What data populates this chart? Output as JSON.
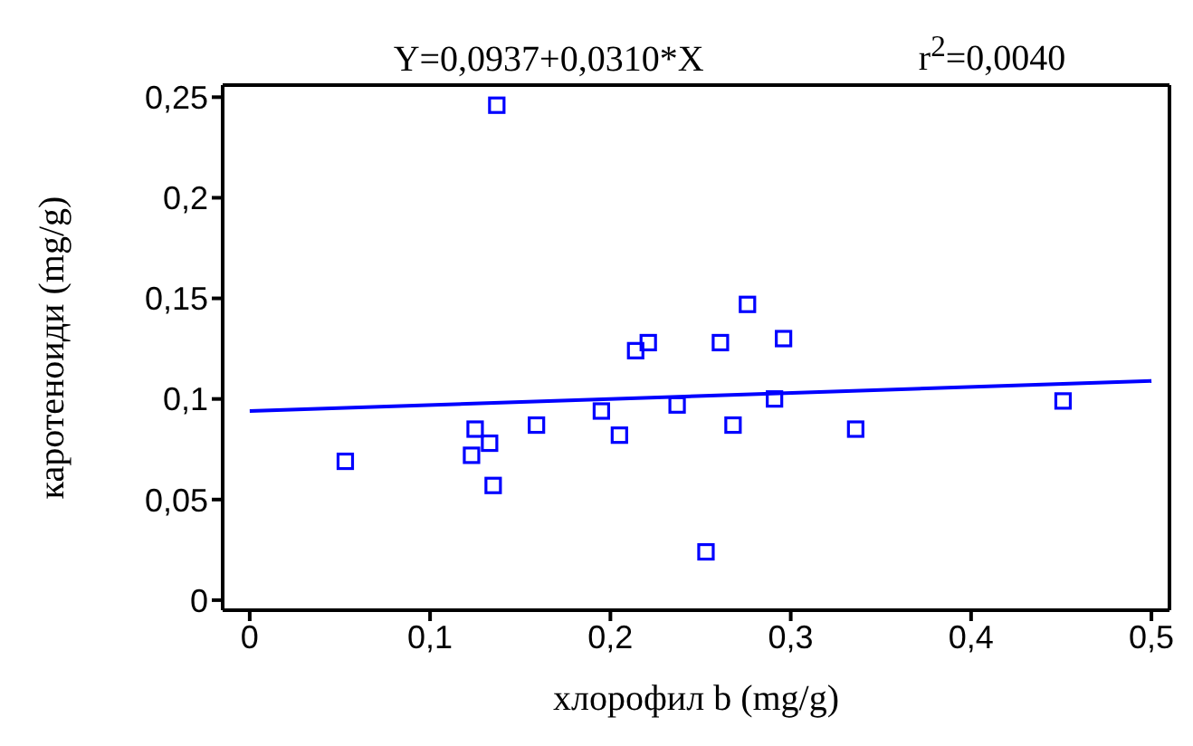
{
  "chart_data": {
    "type": "scatter",
    "xlabel": "хлорофил b (mg/g)",
    "ylabel": "каротеноиди (mg/g)",
    "annotations": [
      "Y=0,0937+0,0310*X",
      "r$^{2}$=0,0040"
    ],
    "xlim": [
      -0.015,
      0.51
    ],
    "xticks": [
      {
        "value": 0,
        "label": "0"
      },
      {
        "value": 0.1,
        "label": "0,1"
      },
      {
        "value": 0.2,
        "label": "0,2"
      },
      {
        "value": 0.3,
        "label": "0,3"
      },
      {
        "value": 0.4,
        "label": "0,4"
      },
      {
        "value": 0.5,
        "label": "0,5"
      }
    ],
    "ylim": [
      -0.005,
      0.256
    ],
    "yticks": [
      {
        "value": 0,
        "label": "0"
      },
      {
        "value": 0.05,
        "label": "0,05"
      },
      {
        "value": 0.1,
        "label": "0,1"
      },
      {
        "value": 0.15,
        "label": "0,15"
      },
      {
        "value": 0.2,
        "label": "0,2"
      },
      {
        "value": 0.25,
        "label": "0,25"
      }
    ],
    "series": [
      {
        "marker": "square",
        "color": "#0000ff",
        "x": [
          0.053,
          0.137,
          0.125,
          0.123,
          0.133,
          0.135,
          0.159,
          0.195,
          0.205,
          0.214,
          0.221,
          0.237,
          0.253,
          0.261,
          0.268,
          0.276,
          0.291,
          0.296,
          0.336,
          0.451
        ],
        "values": [
          0.069,
          0.246,
          0.085,
          0.072,
          0.078,
          0.057,
          0.087,
          0.094,
          0.082,
          0.124,
          0.128,
          0.097,
          0.024,
          0.128,
          0.087,
          0.147,
          0.1,
          0.13,
          0.085,
          0.099
        ]
      },
      {
        "type": "line",
        "marker": "none",
        "line_style": "solid",
        "color": "#0000ff",
        "x": [
          0,
          0.5
        ],
        "values": [
          0.094,
          0.109
        ]
      }
    ]
  }
}
